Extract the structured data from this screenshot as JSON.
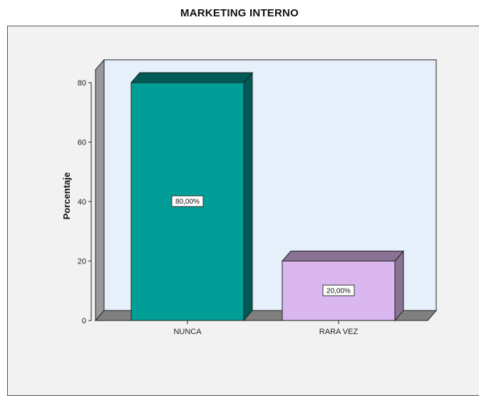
{
  "chart_data": {
    "type": "bar",
    "title": "MARKETING INTERNO",
    "ylabel": "Porcentaje",
    "xlabel": "",
    "categories": [
      "NUNCA",
      "RARA VEZ"
    ],
    "values": [
      80,
      20
    ],
    "data_labels": [
      "80,00%",
      "20,00%"
    ],
    "yticks": [
      "0",
      "20",
      "40",
      "60",
      "80"
    ],
    "ylim": [
      0,
      80
    ],
    "style": "3d",
    "grid": false,
    "bar_colors": [
      "#009e96",
      "#dbb7f0"
    ],
    "bar_side_colors": [
      "#005a55",
      "#8a7294"
    ],
    "plot_background": "#e6f0fb"
  }
}
